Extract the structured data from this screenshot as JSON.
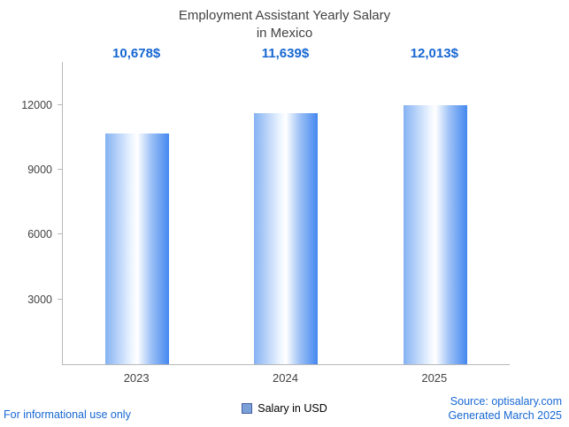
{
  "title": {
    "line1": "Employment Assistant Yearly Salary",
    "line2": "in Mexico"
  },
  "value_labels": [
    "10,678$",
    "11,639$",
    "12,013$"
  ],
  "legend": {
    "label": "Salary in USD"
  },
  "footer": {
    "left": "For informational use only",
    "source": "Source: optisalary.com",
    "generated": "Generated March 2025"
  },
  "colors": {
    "accent_text": "#1667d3",
    "title_text": "#424242",
    "axis": "#b8b8b8",
    "bar_edge_left": "#85b2f2",
    "bar_center": "#ffffff",
    "bar_edge_right": "#4487ef",
    "legend_swatch": "#7ba0d8"
  },
  "chart_data": {
    "type": "bar",
    "title": "Employment Assistant Yearly Salary in Mexico",
    "categories": [
      "2023",
      "2024",
      "2025"
    ],
    "values": [
      10678,
      11639,
      12013
    ],
    "value_labels": [
      "10,678$",
      "11,639$",
      "12,013$"
    ],
    "xlabel": "",
    "ylabel": "",
    "ylim": [
      0,
      14000
    ],
    "yticks": [
      3000,
      6000,
      9000,
      12000
    ],
    "legend": [
      "Salary in USD"
    ],
    "legend_position": "bottom",
    "grid": false
  }
}
